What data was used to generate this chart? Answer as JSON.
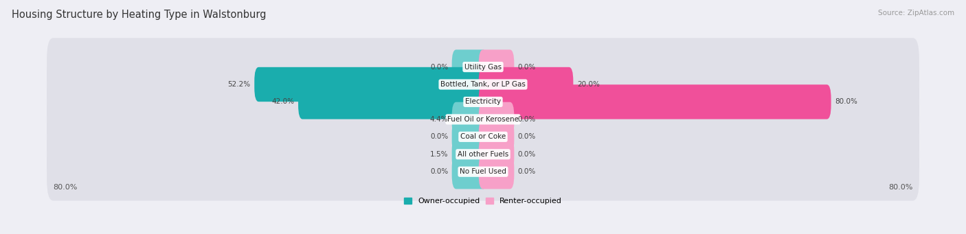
{
  "title": "Housing Structure by Heating Type in Walstonburg",
  "source": "Source: ZipAtlas.com",
  "categories": [
    "Utility Gas",
    "Bottled, Tank, or LP Gas",
    "Electricity",
    "Fuel Oil or Kerosene",
    "Coal or Coke",
    "All other Fuels",
    "No Fuel Used"
  ],
  "owner_values": [
    0.0,
    52.2,
    42.0,
    4.4,
    0.0,
    1.5,
    0.0
  ],
  "renter_values": [
    0.0,
    20.0,
    80.0,
    0.0,
    0.0,
    0.0,
    0.0
  ],
  "owner_color_strong": "#1aadad",
  "owner_color_light": "#6ecece",
  "renter_color_strong": "#f0509a",
  "renter_color_light": "#f7a0c8",
  "axis_min": -80.0,
  "axis_max": 80.0,
  "background_color": "#eeeef4",
  "row_bg_color": "#e0e0e8",
  "title_fontsize": 10.5,
  "source_fontsize": 7.5,
  "label_fontsize": 7.5,
  "value_fontsize": 7.5,
  "tick_fontsize": 8,
  "stub_size": 5.0,
  "strong_threshold": 10.0
}
